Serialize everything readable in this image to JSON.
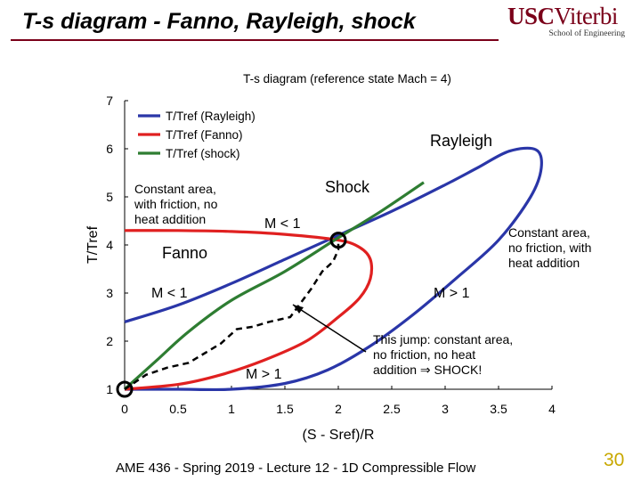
{
  "header": {
    "title": "T-s diagram - Fanno, Rayleigh, shock",
    "logo_text_1": "USC",
    "logo_text_2": "Viterbi",
    "logo_sub": "School of Engineering"
  },
  "footer": {
    "text": "AME 436 - Spring 2019 - Lecture 12 - 1D Compressible Flow",
    "page": "30"
  },
  "colors": {
    "rayleigh": "#2a36a8",
    "fanno": "#e02020",
    "shock": "#2e7d32",
    "accent": "#7a0019",
    "page_num": "#c8a800"
  },
  "chart_data": {
    "type": "line",
    "title": "T-s diagram (reference state Mach = 4)",
    "xlabel": "(S - Sref)/R",
    "ylabel": "T/Tref",
    "xlim": [
      0,
      4
    ],
    "ylim": [
      1,
      7
    ],
    "xticks": [
      "0",
      "0.5",
      "1",
      "1.5",
      "2",
      "2.5",
      "3",
      "3.5",
      "4"
    ],
    "yticks": [
      "1",
      "2",
      "3",
      "4",
      "5",
      "6",
      "7"
    ],
    "legend_position": "top-left",
    "series": [
      {
        "name": "T/Tref (Rayleigh)",
        "color": "#2a36a8",
        "points": [
          [
            0,
            2.4
          ],
          [
            0.5,
            2.75
          ],
          [
            1,
            3.2
          ],
          [
            1.5,
            3.7
          ],
          [
            2,
            4.2
          ],
          [
            2.5,
            4.7
          ],
          [
            3,
            5.25
          ],
          [
            3.3,
            5.6
          ],
          [
            3.6,
            5.95
          ],
          [
            3.85,
            5.98
          ],
          [
            3.9,
            5.6
          ],
          [
            3.8,
            5.0
          ],
          [
            3.5,
            4.1
          ],
          [
            3.1,
            3.3
          ],
          [
            2.7,
            2.55
          ],
          [
            2.3,
            1.9
          ],
          [
            1.9,
            1.4
          ],
          [
            1.5,
            1.12
          ],
          [
            1.0,
            1.0
          ],
          [
            0.5,
            1.0
          ],
          [
            0,
            1.0
          ]
        ]
      },
      {
        "name": "T/Tref (Fanno)",
        "color": "#e02020",
        "points": [
          [
            0,
            4.3
          ],
          [
            0.5,
            4.3
          ],
          [
            1,
            4.28
          ],
          [
            1.5,
            4.22
          ],
          [
            2,
            4.1
          ],
          [
            2.2,
            3.95
          ],
          [
            2.3,
            3.7
          ],
          [
            2.3,
            3.3
          ],
          [
            2.2,
            2.9
          ],
          [
            2.0,
            2.5
          ],
          [
            1.7,
            2.0
          ],
          [
            1.3,
            1.6
          ],
          [
            0.9,
            1.3
          ],
          [
            0.5,
            1.1
          ],
          [
            0,
            1.0
          ]
        ]
      },
      {
        "name": "T/Tref (shock)",
        "color": "#2e7d32",
        "points": [
          [
            0,
            1.0
          ],
          [
            0.3,
            1.6
          ],
          [
            0.6,
            2.2
          ],
          [
            1.0,
            2.85
          ],
          [
            1.5,
            3.45
          ],
          [
            2.0,
            4.15
          ],
          [
            2.4,
            4.7
          ],
          [
            2.8,
            5.3
          ]
        ]
      }
    ],
    "jump_path": [
      [
        0,
        1.0
      ],
      [
        0.2,
        1.3
      ],
      [
        0.4,
        1.45
      ],
      [
        0.6,
        1.55
      ],
      [
        0.75,
        1.75
      ],
      [
        0.9,
        1.95
      ],
      [
        1.05,
        2.25
      ],
      [
        1.2,
        2.3
      ],
      [
        1.35,
        2.4
      ],
      [
        1.55,
        2.5
      ],
      [
        1.65,
        2.8
      ],
      [
        1.75,
        3.1
      ],
      [
        1.85,
        3.45
      ],
      [
        1.95,
        3.65
      ],
      [
        2.0,
        3.9
      ],
      [
        2.0,
        4.1
      ]
    ],
    "markers": [
      [
        0,
        1.0
      ],
      [
        2.0,
        4.1
      ]
    ],
    "annotations": {
      "rayleigh": "Rayleigh",
      "shock": "Shock",
      "fanno_desc": [
        "Constant area,",
        "with friction, no",
        "heat addition"
      ],
      "rayleigh_desc": [
        "Constant area,",
        "no friction, with",
        "heat addition"
      ],
      "fanno": "Fanno",
      "m_lt_1_a": "M < 1",
      "m_lt_1_b": "M < 1",
      "m_gt_1_a": "M > 1",
      "m_gt_1_b": "M > 1",
      "jump": [
        "This jump: constant area,",
        "no friction, no heat",
        "addition ⇒ SHOCK!"
      ]
    }
  }
}
